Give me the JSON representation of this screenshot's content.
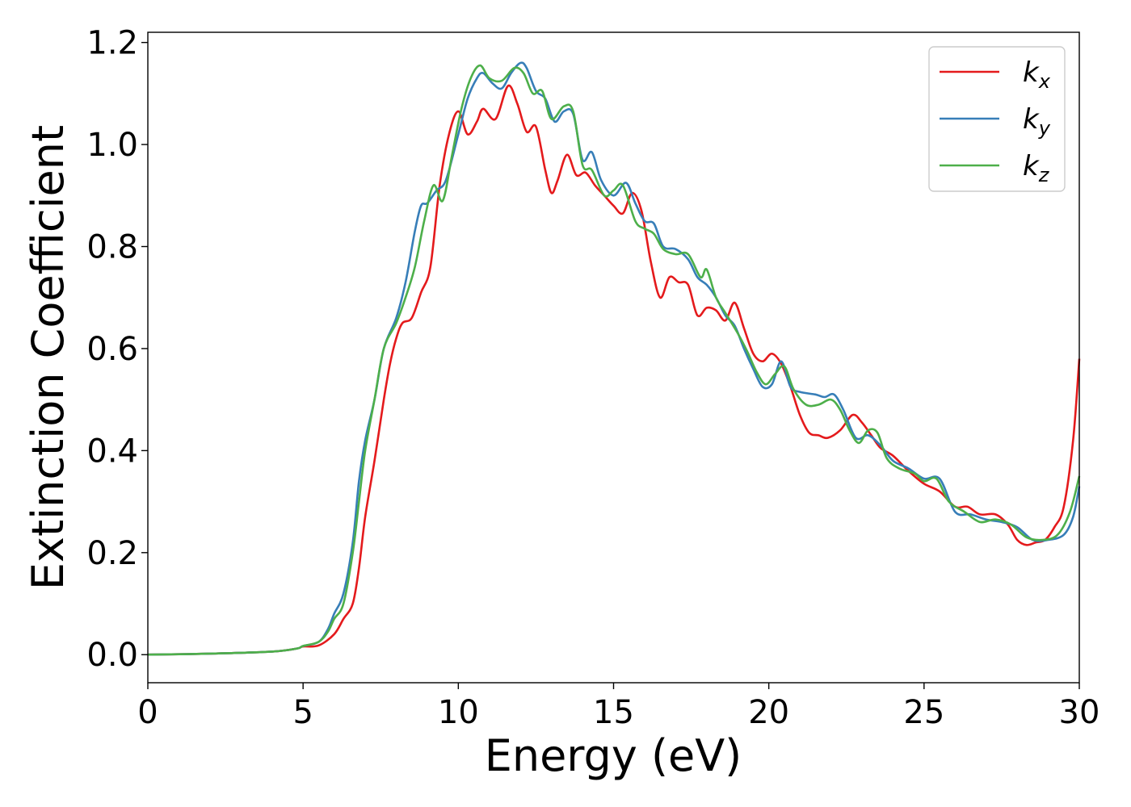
{
  "chart_data": {
    "type": "line",
    "xlabel": "Energy (eV)",
    "ylabel": "Extinction Coefficient",
    "xlim": [
      0,
      30
    ],
    "ylim": [
      -0.055,
      1.22
    ],
    "xticks": [
      0,
      5,
      10,
      15,
      20,
      25,
      30
    ],
    "xtick_labels": [
      "0",
      "5",
      "10",
      "15",
      "20",
      "25",
      "30"
    ],
    "yticks": [
      0.0,
      0.2,
      0.4,
      0.6,
      0.8,
      1.0,
      1.2
    ],
    "ytick_labels": [
      "0.0",
      "0.2",
      "0.4",
      "0.6",
      "0.8",
      "1.0",
      "1.2"
    ],
    "grid": false,
    "legend_position": "top-right",
    "series": [
      {
        "name": "k",
        "subscript": "x",
        "color": "#e41a1c",
        "points": [
          [
            0,
            0
          ],
          [
            2,
            0.002
          ],
          [
            4,
            0.006
          ],
          [
            4.8,
            0.012
          ],
          [
            5,
            0.016
          ],
          [
            5.5,
            0.018
          ],
          [
            6,
            0.04
          ],
          [
            6.3,
            0.07
          ],
          [
            6.6,
            0.1
          ],
          [
            6.8,
            0.17
          ],
          [
            7,
            0.27
          ],
          [
            7.3,
            0.38
          ],
          [
            7.6,
            0.5
          ],
          [
            7.8,
            0.57
          ],
          [
            8,
            0.62
          ],
          [
            8.2,
            0.65
          ],
          [
            8.5,
            0.66
          ],
          [
            8.8,
            0.71
          ],
          [
            9.1,
            0.76
          ],
          [
            9.4,
            0.92
          ],
          [
            9.7,
            1.02
          ],
          [
            10,
            1.065
          ],
          [
            10.3,
            1.02
          ],
          [
            10.6,
            1.045
          ],
          [
            10.8,
            1.07
          ],
          [
            11.2,
            1.05
          ],
          [
            11.6,
            1.115
          ],
          [
            11.9,
            1.08
          ],
          [
            12.2,
            1.025
          ],
          [
            12.5,
            1.035
          ],
          [
            12.8,
            0.95
          ],
          [
            13.0,
            0.905
          ],
          [
            13.2,
            0.93
          ],
          [
            13.5,
            0.98
          ],
          [
            13.8,
            0.94
          ],
          [
            14.1,
            0.945
          ],
          [
            14.4,
            0.92
          ],
          [
            14.7,
            0.9
          ],
          [
            15.0,
            0.88
          ],
          [
            15.3,
            0.865
          ],
          [
            15.6,
            0.905
          ],
          [
            15.9,
            0.87
          ],
          [
            16.2,
            0.77
          ],
          [
            16.5,
            0.7
          ],
          [
            16.8,
            0.74
          ],
          [
            17.1,
            0.73
          ],
          [
            17.4,
            0.725
          ],
          [
            17.7,
            0.665
          ],
          [
            18.0,
            0.68
          ],
          [
            18.3,
            0.675
          ],
          [
            18.6,
            0.655
          ],
          [
            18.9,
            0.69
          ],
          [
            19.2,
            0.64
          ],
          [
            19.5,
            0.59
          ],
          [
            19.8,
            0.575
          ],
          [
            20.1,
            0.59
          ],
          [
            20.4,
            0.57
          ],
          [
            20.7,
            0.525
          ],
          [
            21,
            0.47
          ],
          [
            21.3,
            0.435
          ],
          [
            21.6,
            0.43
          ],
          [
            21.9,
            0.425
          ],
          [
            22.3,
            0.44
          ],
          [
            22.7,
            0.47
          ],
          [
            23.0,
            0.455
          ],
          [
            23.3,
            0.43
          ],
          [
            23.6,
            0.405
          ],
          [
            24.0,
            0.39
          ],
          [
            24.5,
            0.36
          ],
          [
            25.0,
            0.335
          ],
          [
            25.5,
            0.32
          ],
          [
            26.0,
            0.29
          ],
          [
            26.4,
            0.29
          ],
          [
            26.8,
            0.275
          ],
          [
            27.3,
            0.275
          ],
          [
            27.7,
            0.255
          ],
          [
            28.0,
            0.225
          ],
          [
            28.3,
            0.215
          ],
          [
            28.6,
            0.22
          ],
          [
            28.9,
            0.225
          ],
          [
            29.2,
            0.25
          ],
          [
            29.5,
            0.29
          ],
          [
            29.8,
            0.42
          ],
          [
            30,
            0.58
          ]
        ]
      },
      {
        "name": "k",
        "subscript": "y",
        "color": "#377eb8",
        "points": [
          [
            0,
            0
          ],
          [
            2,
            0.002
          ],
          [
            4,
            0.006
          ],
          [
            4.8,
            0.012
          ],
          [
            5,
            0.017
          ],
          [
            5.5,
            0.025
          ],
          [
            5.8,
            0.05
          ],
          [
            6,
            0.08
          ],
          [
            6.3,
            0.12
          ],
          [
            6.6,
            0.22
          ],
          [
            6.8,
            0.34
          ],
          [
            7,
            0.42
          ],
          [
            7.3,
            0.5
          ],
          [
            7.6,
            0.6
          ],
          [
            8,
            0.66
          ],
          [
            8.3,
            0.73
          ],
          [
            8.6,
            0.83
          ],
          [
            8.8,
            0.88
          ],
          [
            9.0,
            0.885
          ],
          [
            9.3,
            0.91
          ],
          [
            9.6,
            0.93
          ],
          [
            10.0,
            1.02
          ],
          [
            10.3,
            1.09
          ],
          [
            10.6,
            1.13
          ],
          [
            10.8,
            1.14
          ],
          [
            11.1,
            1.12
          ],
          [
            11.4,
            1.11
          ],
          [
            11.7,
            1.14
          ],
          [
            12.0,
            1.16
          ],
          [
            12.2,
            1.15
          ],
          [
            12.5,
            1.105
          ],
          [
            12.8,
            1.09
          ],
          [
            13.1,
            1.045
          ],
          [
            13.4,
            1.065
          ],
          [
            13.7,
            1.06
          ],
          [
            14.0,
            0.97
          ],
          [
            14.3,
            0.985
          ],
          [
            14.6,
            0.93
          ],
          [
            15.0,
            0.9
          ],
          [
            15.4,
            0.925
          ],
          [
            15.7,
            0.885
          ],
          [
            16.0,
            0.85
          ],
          [
            16.3,
            0.845
          ],
          [
            16.6,
            0.8
          ],
          [
            17.0,
            0.795
          ],
          [
            17.4,
            0.775
          ],
          [
            17.7,
            0.74
          ],
          [
            18.0,
            0.725
          ],
          [
            18.3,
            0.7
          ],
          [
            18.6,
            0.665
          ],
          [
            18.9,
            0.645
          ],
          [
            19.2,
            0.6
          ],
          [
            19.5,
            0.56
          ],
          [
            19.8,
            0.525
          ],
          [
            20.1,
            0.53
          ],
          [
            20.4,
            0.575
          ],
          [
            20.7,
            0.525
          ],
          [
            21.0,
            0.515
          ],
          [
            21.5,
            0.51
          ],
          [
            21.8,
            0.505
          ],
          [
            22.1,
            0.51
          ],
          [
            22.4,
            0.48
          ],
          [
            22.8,
            0.425
          ],
          [
            23.2,
            0.43
          ],
          [
            23.6,
            0.41
          ],
          [
            24.0,
            0.38
          ],
          [
            24.5,
            0.365
          ],
          [
            25.0,
            0.345
          ],
          [
            25.5,
            0.345
          ],
          [
            26.0,
            0.28
          ],
          [
            26.5,
            0.275
          ],
          [
            27.0,
            0.265
          ],
          [
            27.5,
            0.26
          ],
          [
            28.0,
            0.25
          ],
          [
            28.5,
            0.225
          ],
          [
            29.0,
            0.225
          ],
          [
            29.5,
            0.235
          ],
          [
            29.8,
            0.27
          ],
          [
            30,
            0.33
          ]
        ]
      },
      {
        "name": "k",
        "subscript": "z",
        "color": "#4daf4a",
        "points": [
          [
            0,
            0
          ],
          [
            2,
            0.002
          ],
          [
            4,
            0.006
          ],
          [
            4.8,
            0.012
          ],
          [
            5,
            0.017
          ],
          [
            5.5,
            0.025
          ],
          [
            5.8,
            0.045
          ],
          [
            6,
            0.07
          ],
          [
            6.3,
            0.1
          ],
          [
            6.6,
            0.2
          ],
          [
            6.8,
            0.3
          ],
          [
            7,
            0.4
          ],
          [
            7.3,
            0.5
          ],
          [
            7.6,
            0.6
          ],
          [
            8,
            0.65
          ],
          [
            8.3,
            0.7
          ],
          [
            8.6,
            0.76
          ],
          [
            8.9,
            0.85
          ],
          [
            9.2,
            0.92
          ],
          [
            9.5,
            0.89
          ],
          [
            9.8,
            0.98
          ],
          [
            10.1,
            1.07
          ],
          [
            10.4,
            1.13
          ],
          [
            10.7,
            1.155
          ],
          [
            11.0,
            1.13
          ],
          [
            11.4,
            1.125
          ],
          [
            11.8,
            1.15
          ],
          [
            12.1,
            1.14
          ],
          [
            12.4,
            1.1
          ],
          [
            12.7,
            1.105
          ],
          [
            13.0,
            1.05
          ],
          [
            13.4,
            1.075
          ],
          [
            13.7,
            1.065
          ],
          [
            14.0,
            0.96
          ],
          [
            14.3,
            0.95
          ],
          [
            14.7,
            0.9
          ],
          [
            15.0,
            0.91
          ],
          [
            15.3,
            0.92
          ],
          [
            15.7,
            0.85
          ],
          [
            16.0,
            0.835
          ],
          [
            16.3,
            0.825
          ],
          [
            16.6,
            0.795
          ],
          [
            17.0,
            0.785
          ],
          [
            17.4,
            0.785
          ],
          [
            17.8,
            0.74
          ],
          [
            18.0,
            0.755
          ],
          [
            18.3,
            0.7
          ],
          [
            18.6,
            0.67
          ],
          [
            19.0,
            0.63
          ],
          [
            19.3,
            0.595
          ],
          [
            19.6,
            0.555
          ],
          [
            19.9,
            0.53
          ],
          [
            20.2,
            0.55
          ],
          [
            20.5,
            0.565
          ],
          [
            20.8,
            0.52
          ],
          [
            21.2,
            0.49
          ],
          [
            21.6,
            0.49
          ],
          [
            22.0,
            0.5
          ],
          [
            22.3,
            0.48
          ],
          [
            22.6,
            0.44
          ],
          [
            22.9,
            0.415
          ],
          [
            23.2,
            0.44
          ],
          [
            23.5,
            0.435
          ],
          [
            23.8,
            0.385
          ],
          [
            24.2,
            0.365
          ],
          [
            24.7,
            0.355
          ],
          [
            25.0,
            0.34
          ],
          [
            25.4,
            0.345
          ],
          [
            25.8,
            0.3
          ],
          [
            26.3,
            0.28
          ],
          [
            26.8,
            0.26
          ],
          [
            27.3,
            0.265
          ],
          [
            27.8,
            0.255
          ],
          [
            28.3,
            0.23
          ],
          [
            28.8,
            0.225
          ],
          [
            29.3,
            0.235
          ],
          [
            29.7,
            0.28
          ],
          [
            30,
            0.35
          ]
        ]
      }
    ]
  }
}
